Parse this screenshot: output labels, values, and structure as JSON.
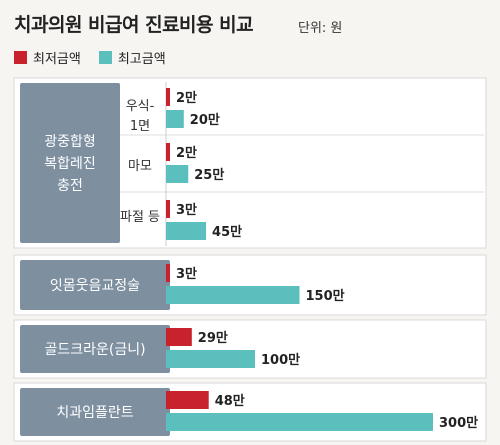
{
  "title": "치과의원 비급여 진료비용 비교",
  "unit": "단위: 원",
  "colors": {
    "min": "#c8232c",
    "max": "#5bbfbd",
    "group_bg": "#7e8fa0",
    "panel_bg": "#ffffff"
  },
  "chart_data": {
    "type": "bar",
    "orientation": "horizontal",
    "series": [
      {
        "name": "최저금액",
        "values": [
          2,
          2,
          3,
          3,
          29,
          48
        ]
      },
      {
        "name": "최고금액",
        "values": [
          20,
          25,
          45,
          150,
          100,
          300
        ]
      }
    ],
    "value_labels": {
      "min": [
        "2만",
        "2만",
        "3만",
        "3만",
        "29만",
        "48만"
      ],
      "max": [
        "20만",
        "25만",
        "45만",
        "150만",
        "100만",
        "300만"
      ]
    },
    "groups": [
      {
        "label": "광중합형\n복합레진\n충전",
        "items": [
          {
            "label": "우식-\n1면"
          },
          {
            "label": "마모"
          },
          {
            "label": "파절 등"
          }
        ]
      },
      {
        "label": "잇몸웃음교정술",
        "items": [
          {
            "label": ""
          }
        ]
      },
      {
        "label": "골드크라운(금니)",
        "items": [
          {
            "label": ""
          }
        ]
      },
      {
        "label": "치과임플란트",
        "items": [
          {
            "label": ""
          }
        ]
      }
    ],
    "legend": "top-left",
    "grid": false
  }
}
